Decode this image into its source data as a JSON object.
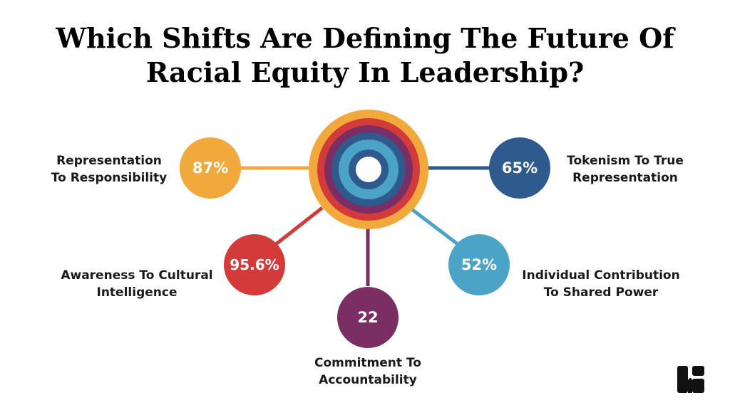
{
  "title": {
    "line1": "Which Shifts Are Defining The Future Of",
    "line2": "Racial Equity In Leadership?"
  },
  "items": [
    {
      "value": "87%",
      "label_line1": "Representation",
      "label_line2": "To Responsibility",
      "color": "#F2A93B"
    },
    {
      "value": "65%",
      "label_line1": "Tokenism To True",
      "label_line2": "Representation",
      "color": "#2E5A8E"
    },
    {
      "value": "95.6%",
      "label_line1": "Awareness To Cultural",
      "label_line2": "Intelligence",
      "color": "#D33A3A"
    },
    {
      "value": "52%",
      "label_line1": "Individual Contribution",
      "label_line2": "To Shared Power",
      "color": "#4BA3C8"
    },
    {
      "value": "22",
      "label_line1": "Commitment To",
      "label_line2": "Accountability",
      "color": "#7A2E63"
    }
  ],
  "rings": [
    "#F2A93B",
    "#D33A3A",
    "#7A2E63",
    "#2E5A8E",
    "#4BA3C8"
  ],
  "logo_icon": "brand-logo-icon"
}
